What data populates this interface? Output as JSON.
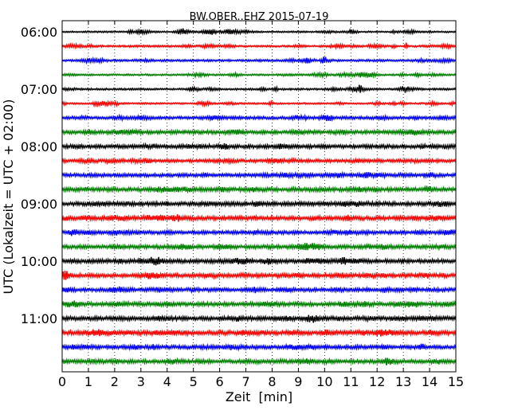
{
  "chart_data": {
    "type": "line",
    "title": "BW.OBER..EHZ 2015-07-19",
    "xlabel": "Zeit  [min]",
    "ylabel": "UTC (Lokalzeit = UTC + 02:00)",
    "x_ticks": [
      "0",
      "1",
      "2",
      "3",
      "4",
      "5",
      "6",
      "7",
      "8",
      "9",
      "10",
      "11",
      "12",
      "13",
      "14",
      "15"
    ],
    "xlim": [
      0,
      15
    ],
    "y_tick_labels": [
      "06:00",
      "07:00",
      "08:00",
      "09:00",
      "10:00",
      "11:00"
    ],
    "grid": "vertical dotted at each minute",
    "trace_colors": [
      "#000000",
      "#ff0000",
      "#0000ff",
      "#008000"
    ],
    "traces": [
      {
        "start": "06:00",
        "color": "#000000",
        "amp": 1.0,
        "events": []
      },
      {
        "start": "06:15",
        "color": "#ff0000",
        "amp": 1.2,
        "events": [
          13.1
        ]
      },
      {
        "start": "06:30",
        "color": "#0000ff",
        "amp": 1.3,
        "events": [
          10.0
        ]
      },
      {
        "start": "06:45",
        "color": "#008000",
        "amp": 1.1,
        "events": []
      },
      {
        "start": "07:00",
        "color": "#000000",
        "amp": 1.2,
        "events": [
          11.35
        ]
      },
      {
        "start": "07:15",
        "color": "#ff0000",
        "amp": 1.0,
        "events": []
      },
      {
        "start": "07:30",
        "color": "#0000ff",
        "amp": 1.8,
        "events": []
      },
      {
        "start": "07:45",
        "color": "#008000",
        "amp": 2.2,
        "events": []
      },
      {
        "start": "08:00",
        "color": "#000000",
        "amp": 2.3,
        "events": []
      },
      {
        "start": "08:15",
        "color": "#ff0000",
        "amp": 2.0,
        "events": []
      },
      {
        "start": "08:30",
        "color": "#0000ff",
        "amp": 2.1,
        "events": []
      },
      {
        "start": "08:45",
        "color": "#008000",
        "amp": 2.4,
        "events": []
      },
      {
        "start": "09:00",
        "color": "#000000",
        "amp": 2.5,
        "events": []
      },
      {
        "start": "09:15",
        "color": "#ff0000",
        "amp": 2.4,
        "events": []
      },
      {
        "start": "09:30",
        "color": "#0000ff",
        "amp": 2.2,
        "events": []
      },
      {
        "start": "09:45",
        "color": "#008000",
        "amp": 2.3,
        "events": []
      },
      {
        "start": "10:00",
        "color": "#000000",
        "amp": 2.4,
        "events": []
      },
      {
        "start": "10:15",
        "color": "#ff0000",
        "amp": 2.3,
        "events": []
      },
      {
        "start": "10:30",
        "color": "#0000ff",
        "amp": 2.2,
        "events": []
      },
      {
        "start": "10:45",
        "color": "#008000",
        "amp": 2.4,
        "events": []
      },
      {
        "start": "11:00",
        "color": "#000000",
        "amp": 2.5,
        "events": []
      },
      {
        "start": "11:15",
        "color": "#ff0000",
        "amp": 2.6,
        "events": []
      },
      {
        "start": "11:30",
        "color": "#0000ff",
        "amp": 2.3,
        "events": []
      },
      {
        "start": "11:45",
        "color": "#008000",
        "amp": 2.2,
        "events": []
      }
    ]
  }
}
